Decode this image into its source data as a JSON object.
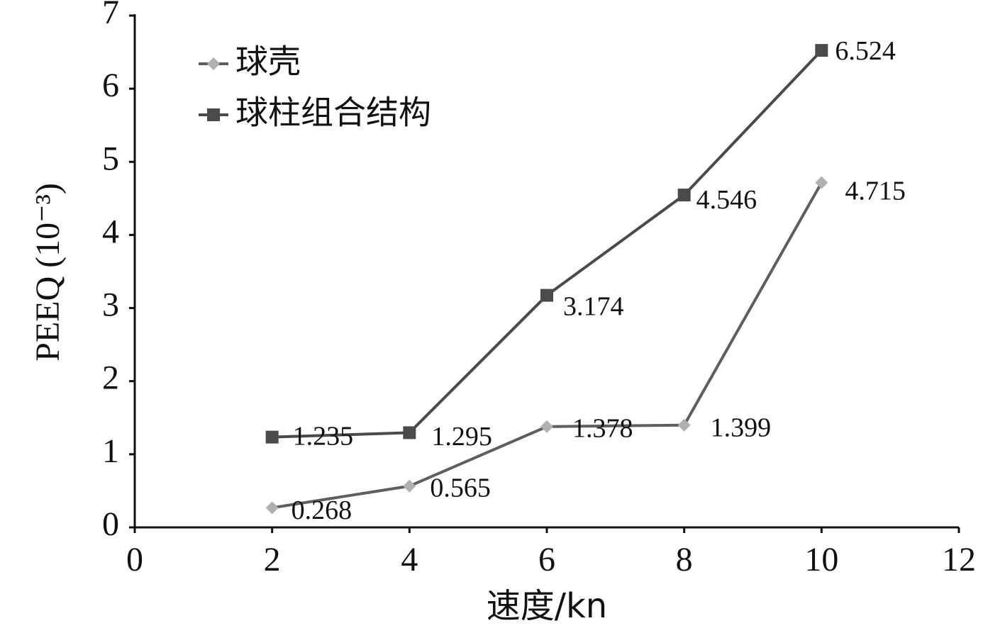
{
  "chart_data": {
    "type": "line",
    "x_label": "速度/kn",
    "y_label": "PEEQ (10⁻³)",
    "x": [
      2,
      4,
      6,
      8,
      10
    ],
    "series": [
      {
        "name": "球壳",
        "color": "#5e5e5e",
        "marker": "diamond",
        "marker_color": "#b0b0b0",
        "values": [
          0.268,
          0.565,
          1.378,
          1.399,
          4.715
        ]
      },
      {
        "name": "球柱组合结构",
        "color": "#4a4a4a",
        "marker": "square",
        "marker_color": "#4a4a4a",
        "values": [
          1.235,
          1.295,
          3.174,
          4.546,
          6.524
        ]
      }
    ],
    "xlim": [
      0,
      12
    ],
    "xticks": [
      0,
      2,
      4,
      6,
      8,
      10,
      12
    ],
    "ylim": [
      0,
      7
    ],
    "yticks": [
      0,
      1,
      2,
      3,
      4,
      5,
      6,
      7
    ],
    "grid": false,
    "legend": "upper left"
  }
}
